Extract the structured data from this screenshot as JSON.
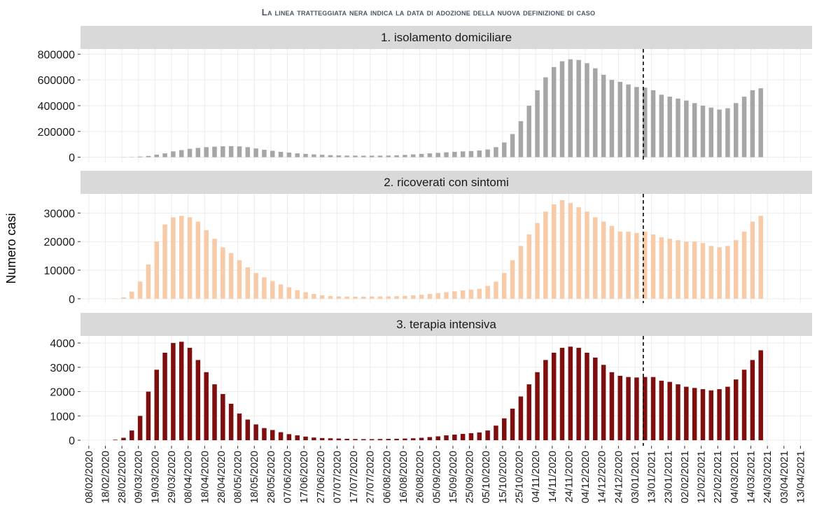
{
  "chart_data": {
    "type": "bar",
    "title": "La linea tratteggiata nera indica la data di adozione della nuova definizione di caso",
    "y_label": "Numero casi",
    "facet": true,
    "grid": true,
    "vline": "08/01/2021",
    "xlim": [
      "03/02/2020",
      "20/04/2021"
    ],
    "xticks": [
      "08/02/2020",
      "18/02/2020",
      "28/02/2020",
      "09/03/2020",
      "19/03/2020",
      "29/03/2020",
      "08/04/2020",
      "18/04/2020",
      "28/04/2020",
      "08/05/2020",
      "18/05/2020",
      "28/05/2020",
      "07/06/2020",
      "17/06/2020",
      "27/06/2020",
      "07/07/2020",
      "17/07/2020",
      "27/07/2020",
      "06/08/2020",
      "16/08/2020",
      "26/08/2020",
      "05/09/2020",
      "15/09/2020",
      "25/09/2020",
      "05/10/2020",
      "15/10/2020",
      "25/10/2020",
      "04/11/2020",
      "14/11/2020",
      "24/11/2020",
      "04/12/2020",
      "14/12/2020",
      "24/12/2020",
      "03/01/2021",
      "13/01/2021",
      "23/01/2021",
      "02/02/2021",
      "12/02/2021",
      "22/02/2021",
      "04/03/2021",
      "14/03/2021",
      "24/03/2021",
      "03/04/2021",
      "13/04/2021"
    ],
    "x": [
      "24/02/2020",
      "29/02/2020",
      "05/03/2020",
      "10/03/2020",
      "15/03/2020",
      "20/03/2020",
      "25/03/2020",
      "30/03/2020",
      "04/04/2020",
      "09/04/2020",
      "14/04/2020",
      "19/04/2020",
      "24/04/2020",
      "29/04/2020",
      "04/05/2020",
      "09/05/2020",
      "14/05/2020",
      "19/05/2020",
      "24/05/2020",
      "29/05/2020",
      "03/06/2020",
      "08/06/2020",
      "13/06/2020",
      "18/06/2020",
      "23/06/2020",
      "28/06/2020",
      "03/07/2020",
      "08/07/2020",
      "13/07/2020",
      "18/07/2020",
      "23/07/2020",
      "28/07/2020",
      "02/08/2020",
      "07/08/2020",
      "12/08/2020",
      "17/08/2020",
      "22/08/2020",
      "27/08/2020",
      "01/09/2020",
      "06/09/2020",
      "11/09/2020",
      "16/09/2020",
      "21/09/2020",
      "26/09/2020",
      "01/10/2020",
      "06/10/2020",
      "11/10/2020",
      "16/10/2020",
      "21/10/2020",
      "26/10/2020",
      "31/10/2020",
      "05/11/2020",
      "10/11/2020",
      "15/11/2020",
      "20/11/2020",
      "25/11/2020",
      "30/11/2020",
      "05/12/2020",
      "10/12/2020",
      "15/12/2020",
      "20/12/2020",
      "25/12/2020",
      "30/12/2020",
      "04/01/2021",
      "09/01/2021",
      "14/01/2021",
      "19/01/2021",
      "24/01/2021",
      "29/01/2021",
      "03/02/2021",
      "08/02/2021",
      "13/02/2021",
      "18/02/2021",
      "23/02/2021",
      "28/02/2021",
      "05/03/2021",
      "10/03/2021",
      "15/03/2021",
      "20/03/2021"
    ],
    "series": [
      {
        "name": "1. isolamento domiciliare",
        "color": "#a6a6a6",
        "ylim": [
          -40000,
          840000
        ],
        "yticks": [
          0,
          200000,
          400000,
          600000,
          800000
        ],
        "values": [
          200,
          1000,
          2000,
          5000,
          10000,
          20000,
          30000,
          45000,
          55000,
          65000,
          72000,
          78000,
          82000,
          85000,
          86000,
          84000,
          78000,
          68000,
          58000,
          50000,
          42000,
          36000,
          30000,
          26000,
          22000,
          19000,
          16000,
          14000,
          13000,
          12500,
          12000,
          12000,
          12500,
          13000,
          15000,
          18000,
          22000,
          26000,
          30000,
          34000,
          38000,
          42000,
          45000,
          48000,
          52000,
          60000,
          78000,
          115000,
          180000,
          280000,
          400000,
          520000,
          620000,
          700000,
          745000,
          760000,
          755000,
          730000,
          690000,
          640000,
          600000,
          585000,
          565000,
          545000,
          540000,
          520000,
          485000,
          470000,
          455000,
          440000,
          420000,
          400000,
          385000,
          370000,
          380000,
          420000,
          470000,
          520000,
          535000
        ]
      },
      {
        "name": "2. ricoverati con sintomi",
        "color": "#f8cba8",
        "ylim": [
          -1500,
          36700
        ],
        "yticks": [
          0,
          10000,
          20000,
          30000
        ],
        "values": [
          100,
          500,
          2500,
          6000,
          12000,
          20000,
          26000,
          28500,
          29000,
          28500,
          27000,
          24000,
          21000,
          18000,
          16000,
          13500,
          11000,
          9000,
          7500,
          6200,
          5000,
          4000,
          3000,
          2300,
          1700,
          1200,
          950,
          850,
          800,
          750,
          750,
          800,
          820,
          850,
          900,
          1000,
          1200,
          1400,
          1700,
          2000,
          2300,
          2600,
          2900,
          3200,
          3500,
          4500,
          6000,
          9000,
          13500,
          18500,
          22500,
          26500,
          30500,
          33000,
          34500,
          33500,
          32000,
          30500,
          28500,
          27000,
          25500,
          23500,
          23500,
          23000,
          23500,
          22500,
          21500,
          21000,
          20500,
          20000,
          20000,
          19500,
          18500,
          18000,
          18500,
          20500,
          23500,
          27000,
          29000
        ]
      },
      {
        "name": "3. terapia intensiva",
        "color": "#7f0f0f",
        "ylim": [
          -230,
          4290
        ],
        "yticks": [
          0,
          1000,
          2000,
          3000,
          4000
        ],
        "values": [
          20,
          100,
          400,
          1000,
          2000,
          2900,
          3600,
          4000,
          4050,
          3800,
          3300,
          2800,
          2300,
          1900,
          1500,
          1100,
          850,
          650,
          500,
          420,
          330,
          250,
          200,
          150,
          110,
          90,
          80,
          70,
          60,
          50,
          45,
          45,
          50,
          55,
          60,
          70,
          80,
          100,
          130,
          160,
          200,
          230,
          260,
          290,
          320,
          400,
          600,
          900,
          1300,
          1800,
          2300,
          2800,
          3300,
          3600,
          3800,
          3850,
          3800,
          3600,
          3400,
          3100,
          2800,
          2650,
          2600,
          2580,
          2600,
          2600,
          2450,
          2400,
          2300,
          2200,
          2150,
          2100,
          2050,
          2100,
          2200,
          2500,
          2900,
          3300,
          3700
        ]
      }
    ]
  }
}
